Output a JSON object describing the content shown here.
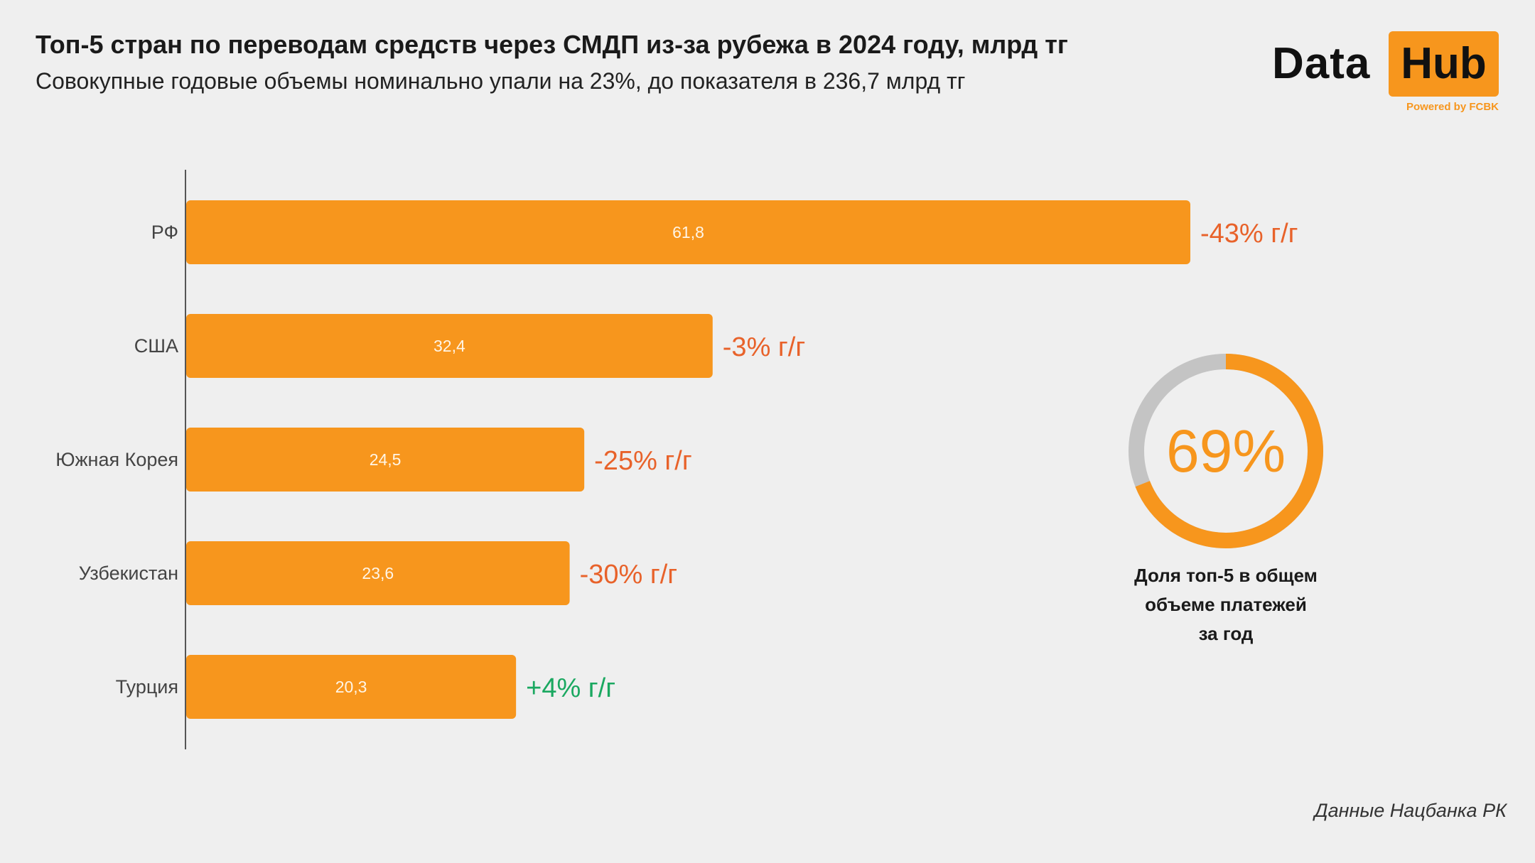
{
  "header": {
    "title": "Топ-5 стран по переводам средств через СМДП из-за рубежа в 2024 году, млрд тг",
    "subtitle": "Совокупные годовые объемы номинально упали на 23%, до показателя в 236,7 млрд тг"
  },
  "logo": {
    "word1": "Data",
    "word2": "Hub",
    "tagline": "Powered by FCBK"
  },
  "chart_data": {
    "type": "bar",
    "orientation": "horizontal",
    "categories": [
      "РФ",
      "США",
      "Южная Корея",
      "Узбекистан",
      "Турция"
    ],
    "values": [
      61.8,
      32.4,
      24.5,
      23.6,
      20.3
    ],
    "value_labels": [
      "61,8",
      "32,4",
      "24,5",
      "23,6",
      "20,3"
    ],
    "change_labels": [
      "-43% г/г",
      "-3% г/г",
      "-25% г/г",
      "-30% г/г",
      "+4% г/г"
    ],
    "change_colors": [
      "#e8622a",
      "#e8622a",
      "#e8622a",
      "#e8622a",
      "#1aa860"
    ],
    "bar_color": "#f7961d",
    "xlim": [
      0,
      61.8
    ],
    "grid": false
  },
  "donut": {
    "value": 69,
    "label": "69%",
    "caption_lines": [
      "Доля топ-5 в общем",
      "объеме платежей",
      "за год"
    ],
    "fill_color": "#f7961d",
    "rest_color": "#c4c4c4"
  },
  "source": "Данные Нацбанка РК"
}
